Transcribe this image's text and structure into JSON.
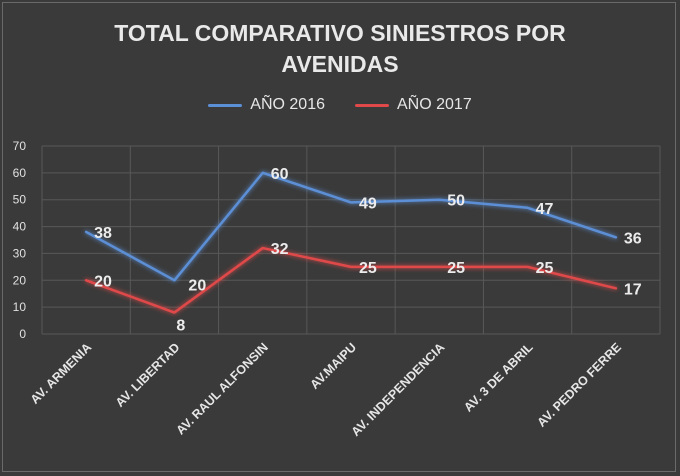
{
  "chart_data": {
    "type": "line",
    "title": [
      "TOTAL COMPARATIVO SINIESTROS POR",
      "AVENIDAS"
    ],
    "categories": [
      "AV. ARMENIA",
      "AV. LIBERTAD",
      "AV. RAUL ALFONSIN",
      "AV.MAIPU",
      "AV. INDEPENDENCIA",
      "AV. 3 DE ABRIL",
      "AV. PEDRO FERRE"
    ],
    "series": [
      {
        "name": "AÑO 2016",
        "color": "#5b8fd6",
        "values": [
          38,
          20,
          60,
          49,
          50,
          47,
          36
        ]
      },
      {
        "name": "AÑO 2017",
        "color": "#e0494a",
        "values": [
          20,
          8,
          32,
          25,
          25,
          25,
          17
        ]
      }
    ],
    "ylim": [
      0,
      70
    ],
    "yticks": [
      0,
      10,
      20,
      30,
      40,
      50,
      60,
      70
    ],
    "grid": true,
    "legend_position": "top"
  }
}
